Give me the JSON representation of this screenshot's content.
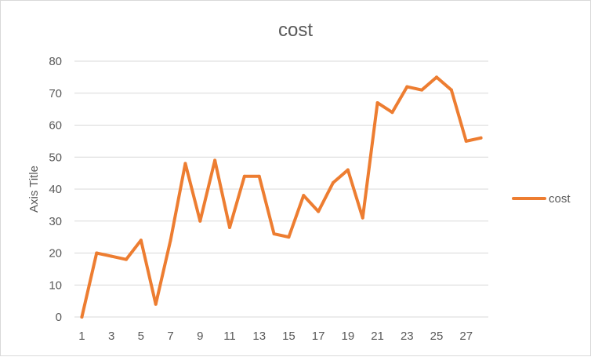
{
  "chart_data": {
    "type": "line",
    "title": "cost",
    "xlabel": "",
    "ylabel": "Axis Title",
    "ylim": [
      0,
      80
    ],
    "yticks": [
      0,
      10,
      20,
      30,
      40,
      50,
      60,
      70,
      80
    ],
    "x": [
      1,
      2,
      3,
      4,
      5,
      6,
      7,
      8,
      9,
      10,
      11,
      12,
      13,
      14,
      15,
      16,
      17,
      18,
      19,
      20,
      21,
      22,
      23,
      24,
      25,
      26,
      27,
      28
    ],
    "xtick_labels": [
      "1",
      "3",
      "5",
      "7",
      "9",
      "11",
      "13",
      "15",
      "17",
      "19",
      "21",
      "23",
      "25",
      "27"
    ],
    "series": [
      {
        "name": "cost",
        "color": "#ED7D31",
        "values": [
          0,
          20,
          19,
          18,
          24,
          4,
          24,
          48,
          30,
          49,
          28,
          44,
          44,
          26,
          25,
          38,
          33,
          42,
          46,
          31,
          67,
          64,
          72,
          71,
          75,
          71,
          55,
          56
        ]
      }
    ],
    "grid": true,
    "legend": "right"
  }
}
